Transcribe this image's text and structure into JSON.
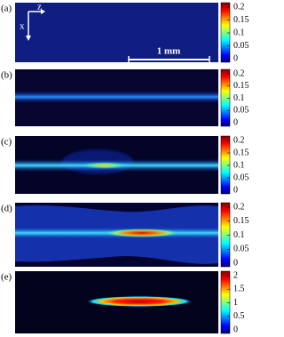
{
  "panels": [
    {
      "label": "(a)",
      "colorbar_ticks": [
        "0.2",
        "0.15",
        "0.1",
        "0.05",
        "0"
      ]
    },
    {
      "label": "(b)",
      "colorbar_ticks": [
        "0.2",
        "0.15",
        "0.1",
        "0.05",
        "0"
      ]
    },
    {
      "label": "(c)",
      "colorbar_ticks": [
        "0.2",
        "0.15",
        "0.1",
        "0.05",
        "0"
      ]
    },
    {
      "label": "(d)",
      "colorbar_ticks": [
        "0.2",
        "0.15",
        "0.1",
        "0.05",
        "0"
      ]
    },
    {
      "label": "(e)",
      "colorbar_ticks": [
        "2",
        "1.5",
        "1",
        "0.5",
        "0"
      ]
    }
  ],
  "annotations": {
    "axis_z": "z",
    "axis_x": "x",
    "scale_bar": "1 mm"
  }
}
